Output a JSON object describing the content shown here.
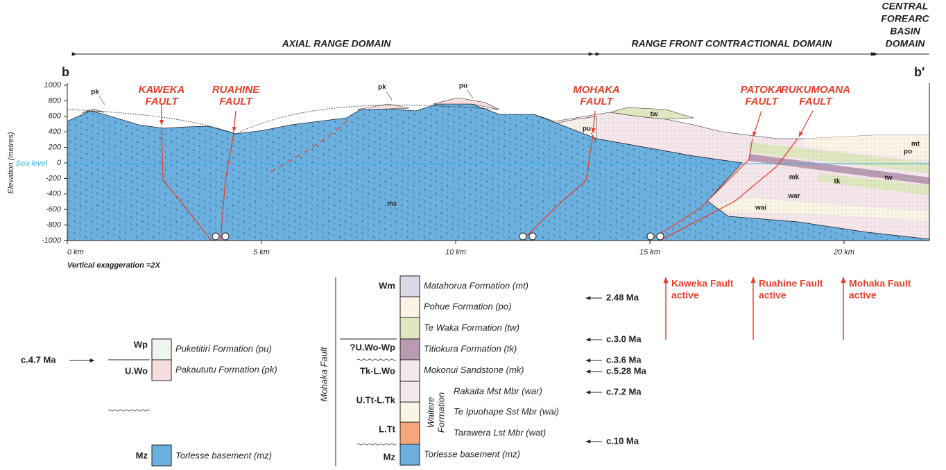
{
  "domains": {
    "axial": "AXIAL RANGE DOMAIN",
    "front": "RANGE FRONT CONTRACTIONAL DOMAIN",
    "basin": [
      "CENTRAL",
      "FOREARC",
      "BASIN",
      "DOMAIN"
    ]
  },
  "section": {
    "start": "b",
    "end": "b′",
    "y_axis_title": "Elevation (metres)",
    "y_ticks": [
      "1000",
      "800",
      "600",
      "400",
      "200",
      "0",
      "-200",
      "-400",
      "-600",
      "-800",
      "-1000"
    ],
    "x_ticks": [
      "0 km",
      "5 km",
      "10 km",
      "15 km",
      "20 km"
    ],
    "sea_level": "Sea level",
    "exaggeration": "Vertical exaggeration =2X"
  },
  "faults": [
    [
      "KAWEKA",
      "FAULT"
    ],
    [
      "RUAHINE",
      "FAULT"
    ],
    [
      "MOHAKA",
      "FAULT"
    ],
    [
      "PATOKA",
      "FAULT"
    ],
    [
      "RUKUMOANA",
      "FAULT"
    ]
  ],
  "unit_labels": [
    "pk",
    "pk",
    "pu",
    "pu",
    "tw",
    "mk",
    "tk",
    "tw",
    "war",
    "wai",
    "mt",
    "po",
    "mz"
  ],
  "legend_left": {
    "age": "c.4.7 Ma",
    "rows": [
      {
        "code": "Wp",
        "name": "Puketitiri Formation (pu)"
      },
      {
        "code": "U.Wo",
        "name": "Pakaututu Formation (pk)"
      },
      {
        "code": "Mz",
        "name": "Torlesse basement (mz)"
      }
    ]
  },
  "legend_right": {
    "fault": "Mohaka Fault",
    "formation": [
      "Waitere",
      "Formation"
    ],
    "rows": [
      "Matahorua Formation (mt)",
      "Pohue Formation (po)",
      "Te Waka Formation (tw)",
      "Titiokura Formation (tk)",
      "Mokonui Sandstone (mk)",
      "Rakaita Mst Mbr (war)",
      "Te Ipuohape Sst Mbr (wai)",
      "Tarawera Lst Mbr (wat)",
      "Torlesse basement (mz)"
    ],
    "codes": [
      "Wm",
      "?U.Wo-Wp",
      "Tk-L.Wo",
      "U.Tt-L.Tk",
      "L.Tt",
      "Mz"
    ],
    "ages": [
      "2.48 Ma",
      "c.3.0 Ma",
      "c.3.6 Ma",
      "c.5.28 Ma",
      "c.7.2 Ma",
      "c.10 Ma"
    ]
  },
  "activity": [
    [
      "Kaweka Fault",
      "active"
    ],
    [
      "Ruahine Fault",
      "active"
    ],
    [
      "Mohaka Fault",
      "active"
    ]
  ]
}
